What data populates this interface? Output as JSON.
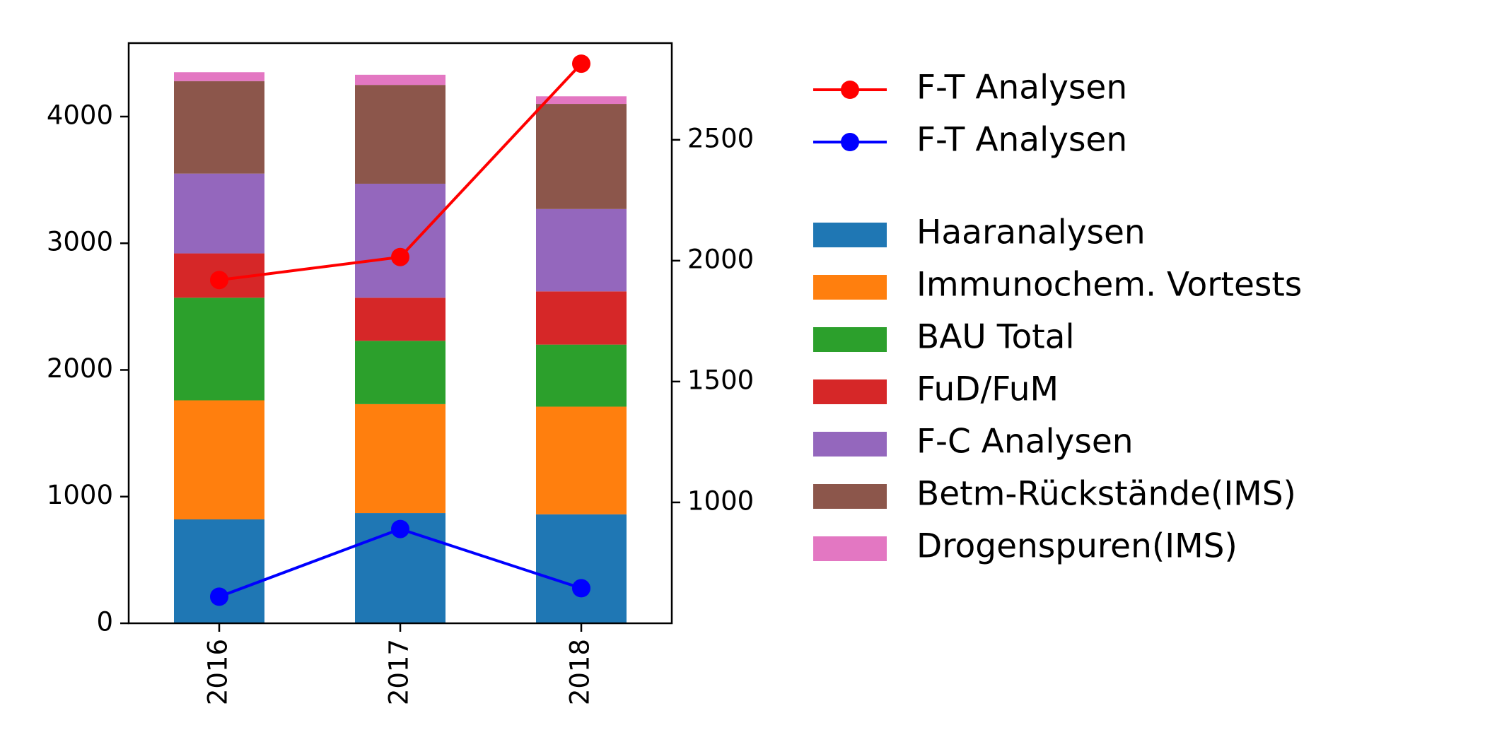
{
  "chart_data": {
    "type": "bar",
    "stacked": true,
    "categories": [
      "2016",
      "2017",
      "2018"
    ],
    "left_axis": {
      "ylim": [
        0,
        4580
      ],
      "ticks": [
        0,
        1000,
        2000,
        3000,
        4000
      ]
    },
    "right_axis": {
      "ylim": [
        500,
        2900
      ],
      "ticks": [
        1000,
        1500,
        2000,
        2500
      ]
    },
    "series": [
      {
        "name": "Haaranalysen",
        "color": "#1f77b4",
        "values": [
          820,
          870,
          860
        ]
      },
      {
        "name": "Immunochem. Vortests",
        "color": "#ff7f0e",
        "values": [
          940,
          860,
          850
        ]
      },
      {
        "name": "BAU Total",
        "color": "#2ca02c",
        "values": [
          810,
          500,
          490
        ]
      },
      {
        "name": "FuD/FuM",
        "color": "#d62728",
        "values": [
          350,
          340,
          420
        ]
      },
      {
        "name": "F-C Analysen",
        "color": "#9467bd",
        "values": [
          630,
          900,
          650
        ]
      },
      {
        "name": "Betm-Rückstände(IMS)",
        "color": "#8c564b",
        "values": [
          730,
          780,
          830
        ]
      },
      {
        "name": "Drogenspuren(IMS)",
        "color": "#e377c2",
        "values": [
          70,
          80,
          60
        ]
      }
    ],
    "line_series": [
      {
        "name": "F-T Analysen",
        "color": "#ff0000",
        "axis": "right",
        "values": [
          1920,
          2015,
          2815
        ]
      },
      {
        "name": "F-T Analysen",
        "color": "#0000ff",
        "axis": "right",
        "values": [
          610,
          890,
          645
        ]
      }
    ],
    "legend_position": "right",
    "grid": false
  }
}
